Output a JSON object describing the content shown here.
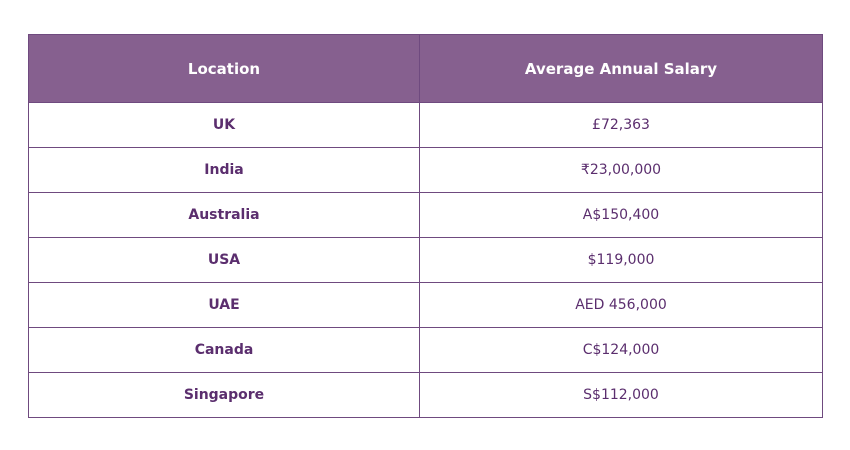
{
  "table": {
    "headers": {
      "location": "Location",
      "salary": "Average Annual Salary"
    },
    "rows": [
      {
        "location": "UK",
        "salary": "£72,363"
      },
      {
        "location": "India",
        "salary": "₹23,00,000"
      },
      {
        "location": "Australia",
        "salary": "A$150,400"
      },
      {
        "location": "USA",
        "salary": "$119,000"
      },
      {
        "location": "UAE",
        "salary": "AED 456,000"
      },
      {
        "location": "Canada",
        "salary": "C$124,000"
      },
      {
        "location": "Singapore",
        "salary": "S$112,000"
      }
    ]
  },
  "colors": {
    "header_bg": "#86608f",
    "border": "#6f4a7f",
    "text": "#5b2e6e"
  }
}
